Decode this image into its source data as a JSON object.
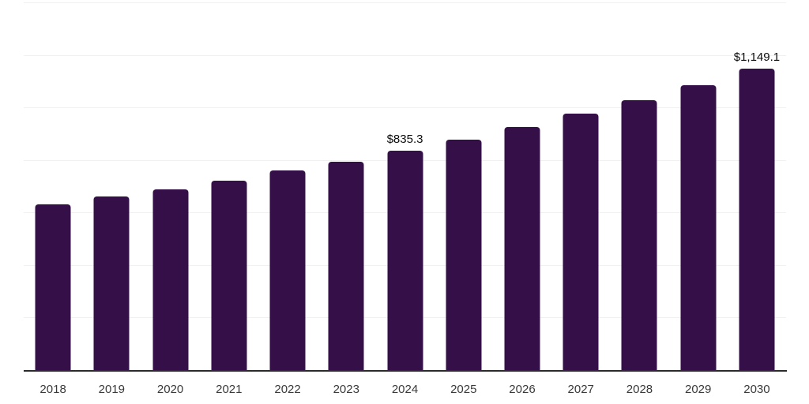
{
  "chart_data": {
    "type": "bar",
    "categories": [
      "2018",
      "2019",
      "2020",
      "2021",
      "2022",
      "2023",
      "2024",
      "2025",
      "2026",
      "2027",
      "2028",
      "2029",
      "2030"
    ],
    "values": [
      630,
      661,
      689,
      721,
      759,
      794,
      835.3,
      877,
      926,
      976,
      1028,
      1085,
      1149.1
    ],
    "point_labels": [
      "",
      "",
      "",
      "",
      "",
      "",
      "$835.3",
      "",
      "",
      "",
      "",
      "",
      "$1,149.1"
    ],
    "title": "",
    "xlabel": "",
    "ylabel": "",
    "ylim": [
      0,
      1400
    ],
    "gridline_step": 200,
    "grid": true,
    "y_tick_labels_shown": false,
    "legend": "none",
    "colors": {
      "bar": "#351048",
      "gridline": "#f1f1f1",
      "axis_line": "#2b2b2b",
      "tick_label": "#3a3a3a",
      "data_label": "#0d0d0d",
      "background": "#ffffff"
    }
  }
}
